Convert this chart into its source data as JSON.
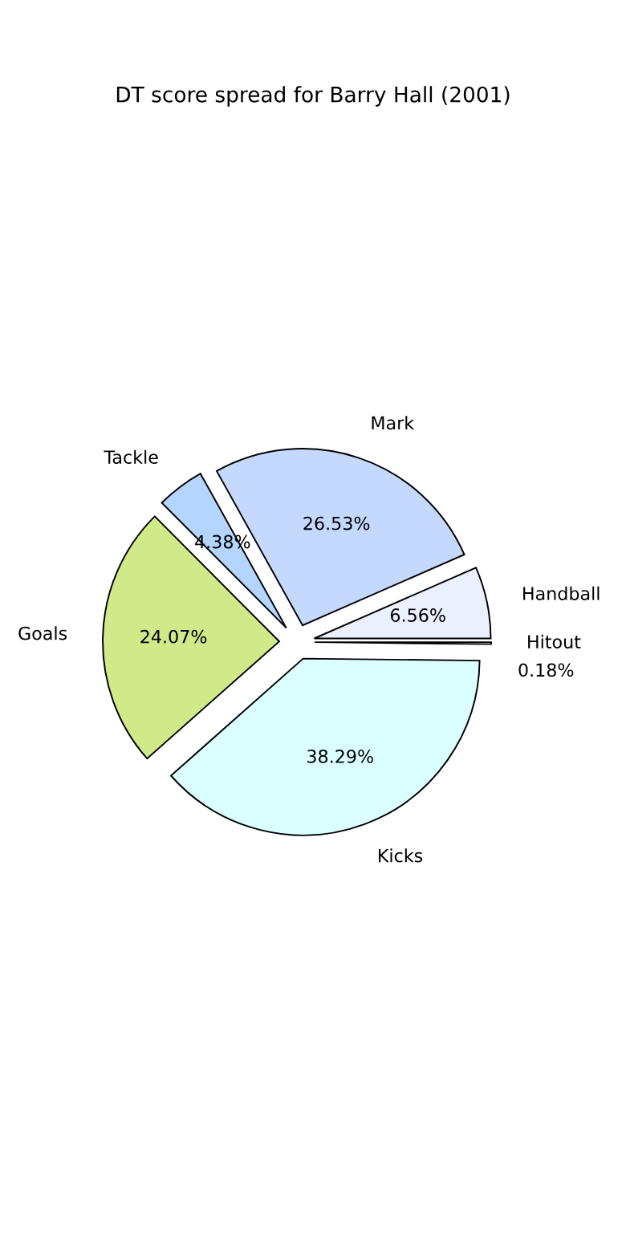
{
  "chart_data": {
    "type": "pie",
    "title": "DT score spread for Barry Hall (2001)",
    "categories": [
      "Handball",
      "Mark",
      "Tackle",
      "Goals",
      "Kicks",
      "Hitout"
    ],
    "values": [
      6.56,
      26.53,
      4.38,
      24.07,
      38.29,
      0.18
    ],
    "colors": [
      "#ebf0ff",
      "#c5d9ff",
      "#b3d5ff",
      "#d0ea8a",
      "#dbffff",
      "#e6ecff"
    ],
    "data_labels": true,
    "value_labels": [
      "6.56%",
      "26.53%",
      "4.38%",
      "24.07%",
      "38.29%",
      "0.18%"
    ]
  }
}
